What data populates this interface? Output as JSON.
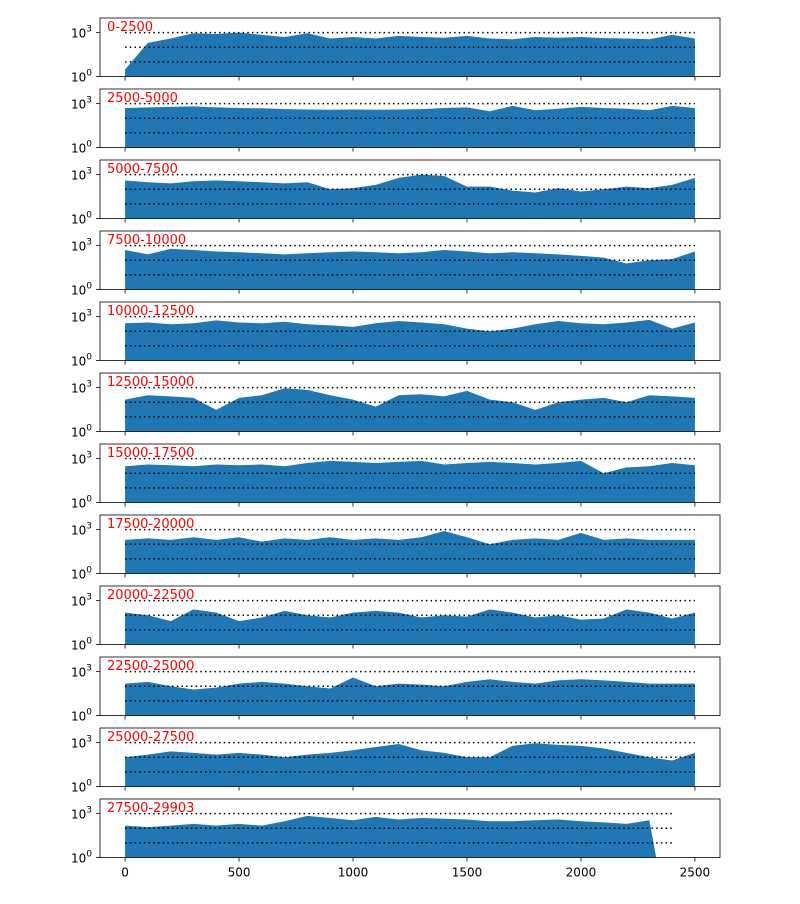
{
  "chart_data": {
    "type": "area",
    "yscale": "log",
    "shared_x": true,
    "xlim": [
      -110,
      2610
    ],
    "ylim": [
      1,
      10000
    ],
    "x_ticks": [
      0,
      500,
      1000,
      1500,
      2000,
      2500
    ],
    "y_ticks": [
      {
        "value": 1,
        "base": "10",
        "exp": "0"
      },
      {
        "value": 1000,
        "base": "10",
        "exp": "3"
      }
    ],
    "reference_lines": [
      1000,
      100,
      10
    ],
    "reference_style": "dotted",
    "colors": {
      "fill": "#1f77b4",
      "label": "#ff0000",
      "reference": "#000000"
    },
    "panels": [
      {
        "label": "0-2500",
        "x": [
          0,
          100,
          200,
          300,
          400,
          500,
          600,
          700,
          800,
          900,
          1000,
          1100,
          1200,
          1300,
          1400,
          1500,
          1600,
          1700,
          1800,
          1900,
          2000,
          2100,
          2200,
          2300,
          2400,
          2500
        ],
        "y": [
          3,
          200,
          400,
          900,
          800,
          1000,
          700,
          500,
          900,
          400,
          500,
          400,
          600,
          500,
          450,
          600,
          400,
          350,
          500,
          450,
          500,
          420,
          400,
          350,
          700,
          400
        ]
      },
      {
        "label": "2500-5000",
        "x": [
          0,
          100,
          200,
          300,
          400,
          500,
          600,
          700,
          800,
          900,
          1000,
          1100,
          1200,
          1300,
          1400,
          1500,
          1600,
          1700,
          1800,
          1900,
          2000,
          2100,
          2200,
          2300,
          2400,
          2500
        ],
        "y": [
          500,
          550,
          600,
          650,
          550,
          500,
          480,
          420,
          400,
          380,
          400,
          380,
          400,
          420,
          500,
          550,
          300,
          700,
          350,
          450,
          600,
          500,
          450,
          350,
          700,
          500
        ]
      },
      {
        "label": "5000-7500",
        "x": [
          0,
          100,
          200,
          300,
          400,
          500,
          600,
          700,
          800,
          900,
          1000,
          1100,
          1200,
          1300,
          1400,
          1500,
          1600,
          1700,
          1800,
          1900,
          2000,
          2100,
          2200,
          2300,
          2400,
          2500
        ],
        "y": [
          400,
          300,
          250,
          350,
          400,
          350,
          300,
          250,
          300,
          100,
          120,
          200,
          600,
          1000,
          800,
          150,
          150,
          80,
          60,
          120,
          70,
          100,
          150,
          120,
          200,
          600
        ]
      },
      {
        "label": "7500-10000",
        "x": [
          0,
          100,
          200,
          300,
          400,
          500,
          600,
          700,
          800,
          900,
          1000,
          1100,
          1200,
          1300,
          1400,
          1500,
          1600,
          1700,
          1800,
          1900,
          2000,
          2100,
          2200,
          2300,
          2400,
          2500
        ],
        "y": [
          500,
          250,
          600,
          500,
          400,
          350,
          300,
          250,
          300,
          350,
          400,
          350,
          300,
          350,
          500,
          400,
          300,
          350,
          300,
          250,
          200,
          150,
          60,
          100,
          120,
          400
        ]
      },
      {
        "label": "10000-12500",
        "x": [
          0,
          100,
          200,
          300,
          400,
          500,
          600,
          700,
          800,
          900,
          1000,
          1100,
          1200,
          1300,
          1400,
          1500,
          1600,
          1700,
          1800,
          1900,
          2000,
          2100,
          2200,
          2300,
          2400,
          2500
        ],
        "y": [
          350,
          400,
          300,
          350,
          550,
          400,
          350,
          450,
          300,
          250,
          200,
          350,
          500,
          400,
          300,
          150,
          100,
          150,
          300,
          500,
          350,
          300,
          400,
          600,
          150,
          400
        ]
      },
      {
        "label": "12500-15000",
        "x": [
          0,
          100,
          200,
          300,
          400,
          500,
          600,
          700,
          800,
          900,
          1000,
          1100,
          1200,
          1300,
          1400,
          1500,
          1600,
          1700,
          1800,
          1900,
          2000,
          2100,
          2200,
          2300,
          2400,
          2500
        ],
        "y": [
          150,
          300,
          250,
          200,
          30,
          200,
          300,
          900,
          700,
          300,
          150,
          50,
          300,
          350,
          250,
          600,
          150,
          100,
          30,
          100,
          150,
          200,
          100,
          300,
          250,
          200
        ]
      },
      {
        "label": "15000-17500",
        "x": [
          0,
          100,
          200,
          300,
          400,
          500,
          600,
          700,
          800,
          900,
          1000,
          1100,
          1200,
          1300,
          1400,
          1500,
          1600,
          1700,
          1800,
          1900,
          2000,
          2100,
          2200,
          2300,
          2400,
          2500
        ],
        "y": [
          300,
          400,
          350,
          300,
          400,
          350,
          400,
          300,
          500,
          700,
          600,
          500,
          600,
          700,
          400,
          500,
          600,
          500,
          400,
          500,
          700,
          100,
          250,
          300,
          500,
          350
        ]
      },
      {
        "label": "17500-20000",
        "x": [
          0,
          100,
          200,
          300,
          400,
          500,
          600,
          700,
          800,
          900,
          1000,
          1100,
          1200,
          1300,
          1400,
          1500,
          1600,
          1700,
          1800,
          1900,
          2000,
          2100,
          2200,
          2300,
          2400,
          2500
        ],
        "y": [
          200,
          250,
          200,
          300,
          200,
          300,
          150,
          250,
          200,
          300,
          200,
          250,
          200,
          300,
          800,
          300,
          100,
          200,
          250,
          200,
          600,
          200,
          250,
          200,
          200,
          200
        ]
      },
      {
        "label": "20000-22500",
        "x": [
          0,
          100,
          200,
          300,
          400,
          500,
          600,
          700,
          800,
          900,
          1000,
          1100,
          1200,
          1300,
          1400,
          1500,
          1600,
          1700,
          1800,
          1900,
          2000,
          2100,
          2200,
          2300,
          2400,
          2500
        ],
        "y": [
          150,
          100,
          40,
          250,
          150,
          40,
          70,
          200,
          100,
          70,
          150,
          200,
          150,
          70,
          100,
          80,
          250,
          150,
          70,
          100,
          50,
          60,
          250,
          150,
          60,
          150
        ]
      },
      {
        "label": "22500-25000",
        "x": [
          0,
          100,
          200,
          300,
          400,
          500,
          600,
          700,
          800,
          900,
          1000,
          1100,
          1200,
          1300,
          1400,
          1500,
          1600,
          1700,
          1800,
          1900,
          2000,
          2100,
          2200,
          2300,
          2400,
          2500
        ],
        "y": [
          150,
          200,
          100,
          60,
          80,
          150,
          200,
          150,
          100,
          70,
          400,
          100,
          150,
          130,
          100,
          200,
          300,
          200,
          150,
          250,
          300,
          250,
          200,
          150,
          150,
          150
        ]
      },
      {
        "label": "25000-27500",
        "x": [
          0,
          100,
          200,
          300,
          400,
          500,
          600,
          700,
          800,
          900,
          1000,
          1100,
          1200,
          1300,
          1400,
          1500,
          1600,
          1700,
          1800,
          1900,
          2000,
          2100,
          2200,
          2300,
          2400,
          2500
        ],
        "y": [
          100,
          150,
          250,
          200,
          150,
          200,
          150,
          100,
          150,
          200,
          300,
          500,
          800,
          300,
          200,
          100,
          100,
          600,
          900,
          700,
          600,
          400,
          200,
          100,
          60,
          200
        ]
      },
      {
        "label": "27500-29903",
        "x": [
          0,
          100,
          200,
          300,
          400,
          500,
          600,
          700,
          800,
          900,
          1000,
          1100,
          1200,
          1300,
          1400,
          1500,
          1600,
          1700,
          1800,
          1900,
          2000,
          2100,
          2200,
          2300,
          2330
        ],
        "y": [
          150,
          120,
          150,
          200,
          150,
          200,
          150,
          300,
          700,
          500,
          350,
          600,
          400,
          500,
          450,
          400,
          300,
          300,
          350,
          400,
          300,
          250,
          200,
          350,
          1
        ]
      }
    ]
  }
}
